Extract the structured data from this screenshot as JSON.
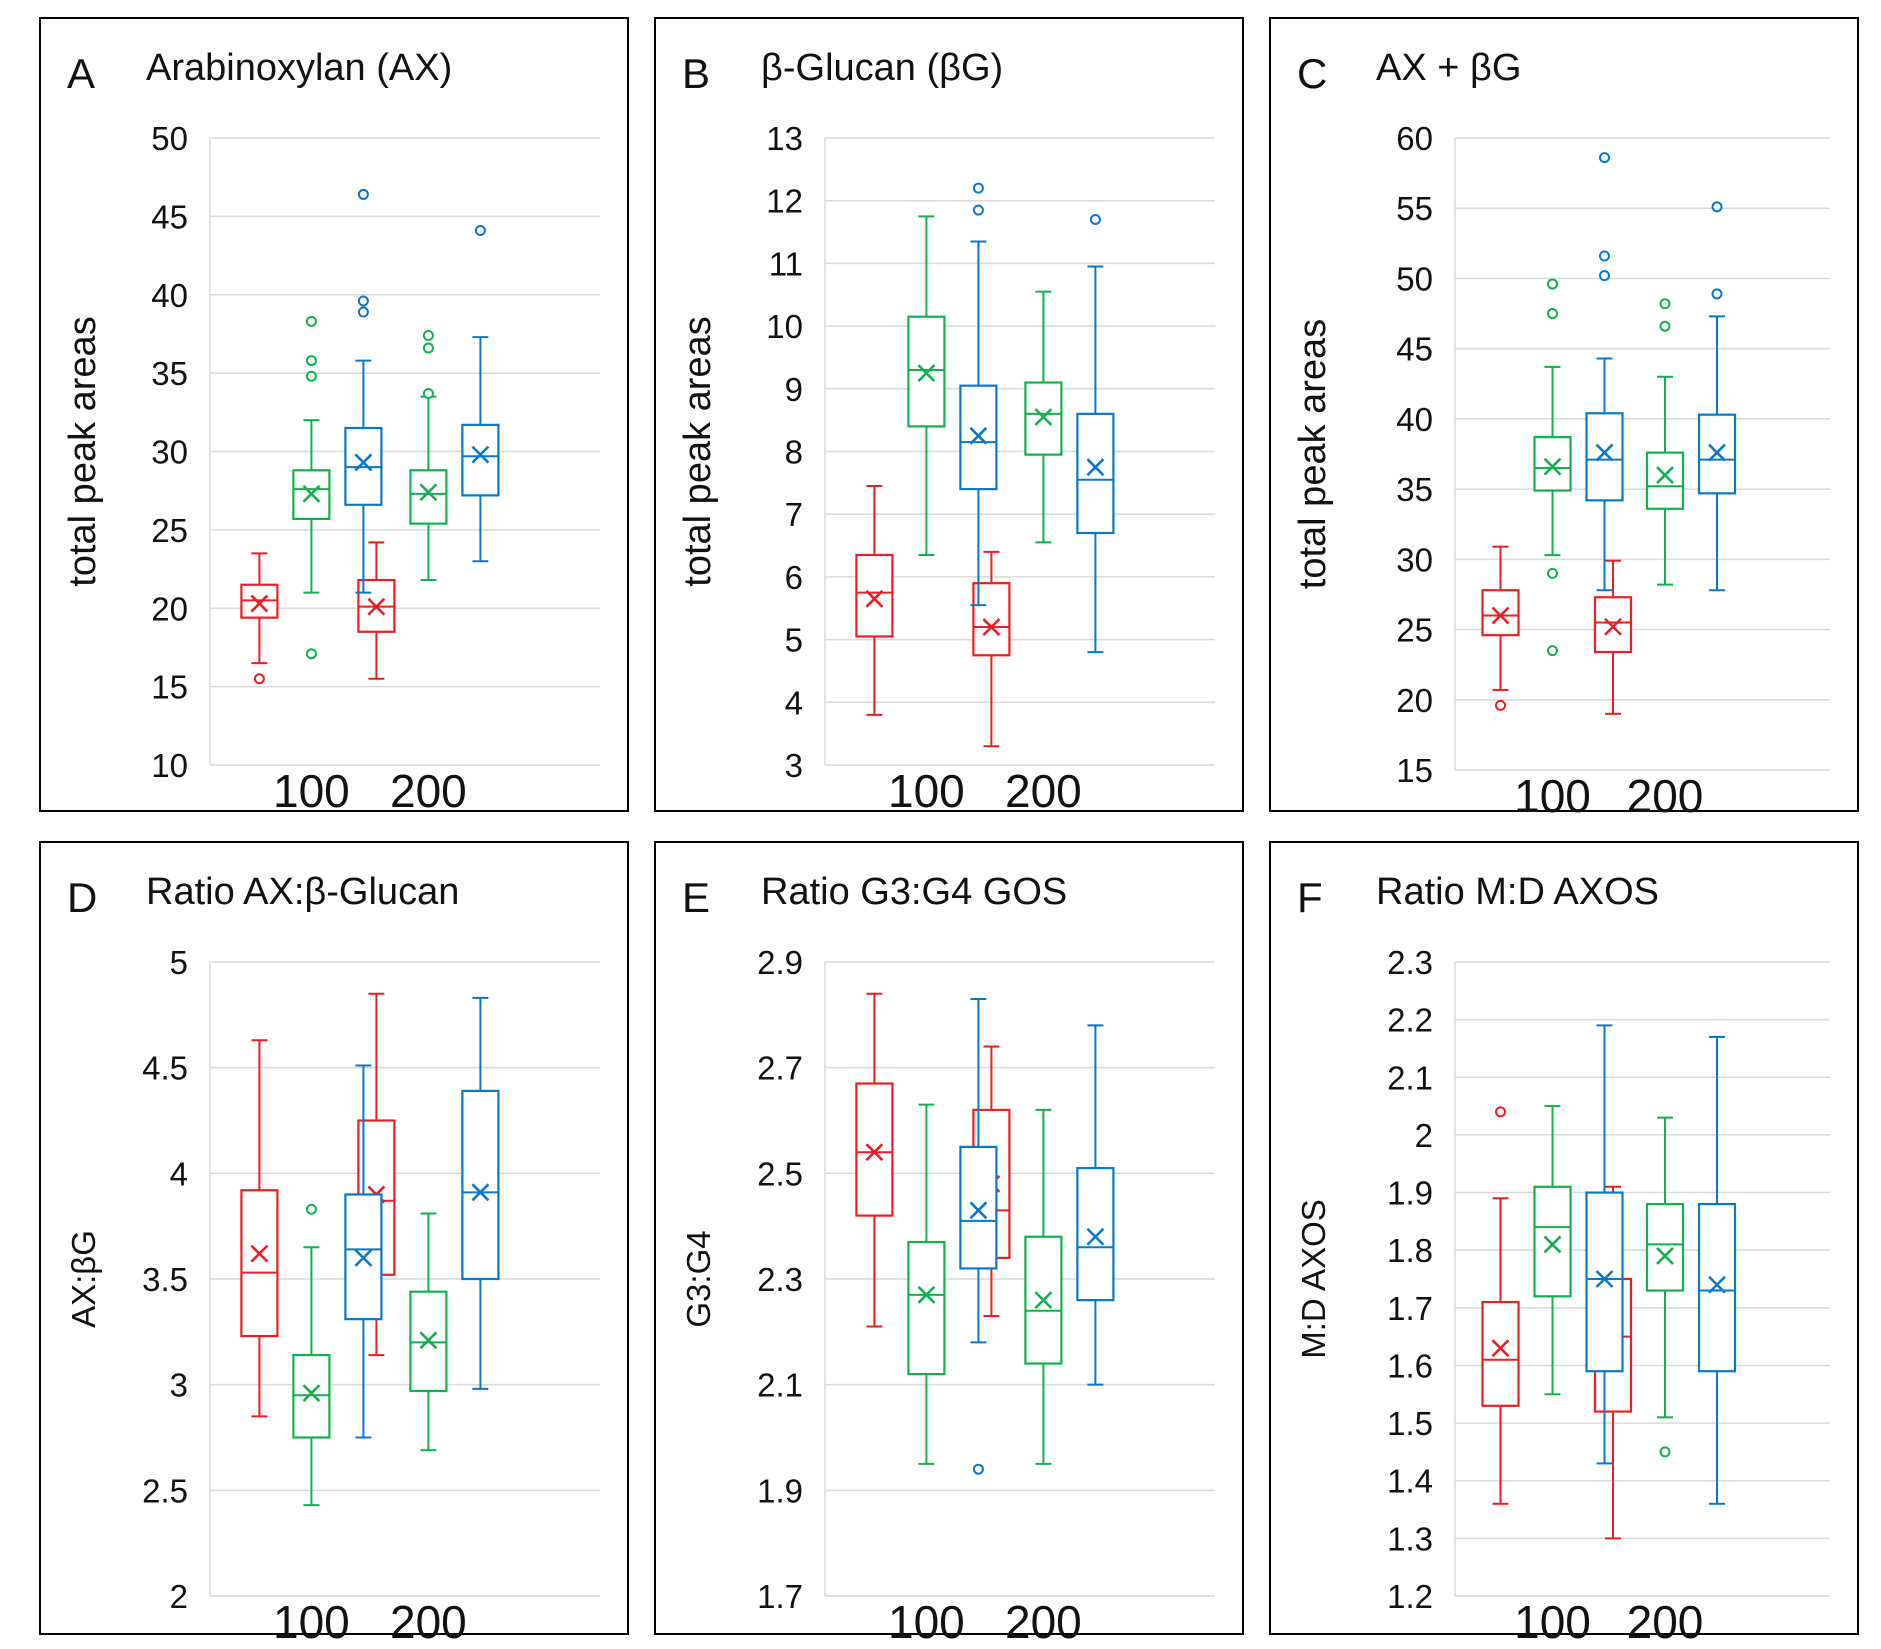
{
  "colors": {
    "red": "#ee1c24",
    "green": "#11b050",
    "blue": "#0a78c8",
    "grid": "#d9d9d9",
    "frame": "#000000"
  },
  "chart_data": [
    {
      "panel": "A",
      "title": "Arabinoxylan (AX)",
      "type": "box",
      "ylabel": "total peak areas",
      "ylim": [
        10,
        50
      ],
      "yticks": [
        10,
        15,
        20,
        25,
        30,
        35,
        40,
        45,
        50
      ],
      "categories": [
        "100",
        "200"
      ],
      "series": [
        {
          "color": "red",
          "boxes": [
            {
              "min": 16.5,
              "q1": 19.4,
              "median": 20.5,
              "q3": 21.5,
              "max": 23.5,
              "mean": 20.3,
              "outliers": [
                15.5
              ]
            },
            {
              "min": 15.5,
              "q1": 18.5,
              "median": 20.1,
              "q3": 21.8,
              "max": 24.2,
              "mean": 20.1,
              "outliers": []
            }
          ]
        },
        {
          "color": "green",
          "boxes": [
            {
              "min": 21.0,
              "q1": 25.7,
              "median": 27.6,
              "q3": 28.8,
              "max": 32.0,
              "mean": 27.3,
              "outliers": [
                17.1,
                34.8,
                35.8,
                38.3
              ]
            },
            {
              "min": 21.8,
              "q1": 25.4,
              "median": 27.3,
              "q3": 28.8,
              "max": 33.5,
              "mean": 27.4,
              "outliers": [
                33.7,
                36.6,
                37.4
              ]
            }
          ]
        },
        {
          "color": "blue",
          "boxes": [
            {
              "min": 21.0,
              "q1": 26.6,
              "median": 29.0,
              "q3": 31.5,
              "max": 35.8,
              "mean": 29.3,
              "outliers": [
                38.9,
                39.6,
                46.4
              ]
            },
            {
              "min": 23.0,
              "q1": 27.2,
              "median": 29.7,
              "q3": 31.7,
              "max": 37.3,
              "mean": 29.8,
              "outliers": [
                44.1
              ]
            }
          ]
        }
      ]
    },
    {
      "panel": "B",
      "title": "β-Glucan (βG)",
      "type": "box",
      "ylabel": "total peak areas",
      "ylim": [
        3,
        13
      ],
      "yticks": [
        3,
        4,
        5,
        6,
        7,
        8,
        9,
        10,
        11,
        12,
        13
      ],
      "categories": [
        "100",
        "200"
      ],
      "series": [
        {
          "color": "red",
          "boxes": [
            {
              "min": 3.8,
              "q1": 5.05,
              "median": 5.75,
              "q3": 6.35,
              "max": 7.45,
              "mean": 5.65,
              "outliers": []
            },
            {
              "min": 3.3,
              "q1": 4.75,
              "median": 5.2,
              "q3": 5.9,
              "max": 6.4,
              "mean": 5.2,
              "outliers": []
            }
          ]
        },
        {
          "color": "green",
          "boxes": [
            {
              "min": 6.35,
              "q1": 8.4,
              "median": 9.3,
              "q3": 10.15,
              "max": 11.75,
              "mean": 9.25,
              "outliers": []
            },
            {
              "min": 6.55,
              "q1": 7.95,
              "median": 8.6,
              "q3": 9.1,
              "max": 10.55,
              "mean": 8.55,
              "outliers": []
            }
          ]
        },
        {
          "color": "blue",
          "boxes": [
            {
              "min": 5.55,
              "q1": 7.4,
              "median": 8.15,
              "q3": 9.05,
              "max": 11.35,
              "mean": 8.25,
              "outliers": [
                11.85,
                12.2
              ]
            },
            {
              "min": 4.8,
              "q1": 6.7,
              "median": 7.55,
              "q3": 8.6,
              "max": 10.95,
              "mean": 7.75,
              "outliers": [
                11.7
              ]
            }
          ]
        }
      ]
    },
    {
      "panel": "C",
      "title": "AX + βG",
      "type": "box",
      "ylabel": "total peak areas",
      "ylim": [
        15,
        60
      ],
      "yticks": [
        15,
        20,
        25,
        30,
        35,
        40,
        45,
        50,
        55,
        60
      ],
      "categories": [
        "100",
        "200"
      ],
      "series": [
        {
          "color": "red",
          "boxes": [
            {
              "min": 20.7,
              "q1": 24.6,
              "median": 26.0,
              "q3": 27.8,
              "max": 30.9,
              "mean": 26.0,
              "outliers": [
                19.6
              ]
            },
            {
              "min": 19.0,
              "q1": 23.4,
              "median": 25.5,
              "q3": 27.3,
              "max": 29.9,
              "mean": 25.2,
              "outliers": []
            }
          ]
        },
        {
          "color": "green",
          "boxes": [
            {
              "min": 30.3,
              "q1": 34.9,
              "median": 36.5,
              "q3": 38.7,
              "max": 43.7,
              "mean": 36.6,
              "outliers": [
                23.5,
                29.0,
                47.5,
                49.6
              ]
            },
            {
              "min": 28.2,
              "q1": 33.6,
              "median": 35.2,
              "q3": 37.6,
              "max": 43.0,
              "mean": 36.0,
              "outliers": [
                46.6,
                48.2
              ]
            }
          ]
        },
        {
          "color": "blue",
          "boxes": [
            {
              "min": 27.8,
              "q1": 34.2,
              "median": 37.1,
              "q3": 40.4,
              "max": 44.3,
              "mean": 37.6,
              "outliers": [
                50.2,
                51.6,
                58.6
              ]
            },
            {
              "min": 27.8,
              "q1": 34.7,
              "median": 37.1,
              "q3": 40.3,
              "max": 47.3,
              "mean": 37.6,
              "outliers": [
                48.9,
                55.1
              ]
            }
          ]
        }
      ]
    },
    {
      "panel": "D",
      "title": "Ratio AX:β-Glucan",
      "type": "box",
      "ylabel": "AX:βG",
      "ylim": [
        2,
        5
      ],
      "yticks": [
        2,
        2.5,
        3,
        3.5,
        4,
        4.5,
        5
      ],
      "categories": [
        "100",
        "200"
      ],
      "series": [
        {
          "color": "red",
          "boxes": [
            {
              "min": 2.85,
              "q1": 3.23,
              "median": 3.53,
              "q3": 3.92,
              "max": 4.63,
              "mean": 3.62,
              "outliers": []
            },
            {
              "min": 3.14,
              "q1": 3.52,
              "median": 3.87,
              "q3": 4.25,
              "max": 4.85,
              "mean": 3.9,
              "outliers": []
            }
          ]
        },
        {
          "color": "green",
          "boxes": [
            {
              "min": 2.43,
              "q1": 2.75,
              "median": 2.95,
              "q3": 3.14,
              "max": 3.65,
              "mean": 2.96,
              "outliers": [
                3.83
              ]
            },
            {
              "min": 2.69,
              "q1": 2.97,
              "median": 3.2,
              "q3": 3.44,
              "max": 3.81,
              "mean": 3.21,
              "outliers": []
            }
          ]
        },
        {
          "color": "blue",
          "boxes": [
            {
              "min": 2.75,
              "q1": 3.31,
              "median": 3.64,
              "q3": 3.9,
              "max": 4.51,
              "mean": 3.6,
              "outliers": []
            },
            {
              "min": 2.98,
              "q1": 3.5,
              "median": 3.91,
              "q3": 4.39,
              "max": 4.83,
              "mean": 3.91,
              "outliers": []
            }
          ]
        }
      ]
    },
    {
      "panel": "E",
      "title": "Ratio G3:G4 GOS",
      "type": "box",
      "ylabel": "G3:G4",
      "ylim": [
        1.7,
        2.9
      ],
      "yticks": [
        1.7,
        1.9,
        2.1,
        2.3,
        2.5,
        2.7,
        2.9
      ],
      "categories": [
        "100",
        "200"
      ],
      "series": [
        {
          "color": "red",
          "boxes": [
            {
              "min": 2.21,
              "q1": 2.42,
              "median": 2.54,
              "q3": 2.67,
              "max": 2.84,
              "mean": 2.54,
              "outliers": []
            },
            {
              "min": 2.23,
              "q1": 2.34,
              "median": 2.43,
              "q3": 2.62,
              "max": 2.74,
              "mean": 2.48,
              "outliers": []
            }
          ]
        },
        {
          "color": "green",
          "boxes": [
            {
              "min": 1.95,
              "q1": 2.12,
              "median": 2.27,
              "q3": 2.37,
              "max": 2.63,
              "mean": 2.27,
              "outliers": []
            },
            {
              "min": 1.95,
              "q1": 2.14,
              "median": 2.24,
              "q3": 2.38,
              "max": 2.62,
              "mean": 2.26,
              "outliers": []
            }
          ]
        },
        {
          "color": "blue",
          "boxes": [
            {
              "min": 2.18,
              "q1": 2.32,
              "median": 2.41,
              "q3": 2.55,
              "max": 2.83,
              "mean": 2.43,
              "outliers": [
                1.94
              ]
            },
            {
              "min": 2.1,
              "q1": 2.26,
              "median": 2.36,
              "q3": 2.51,
              "max": 2.78,
              "mean": 2.38,
              "outliers": []
            }
          ]
        }
      ]
    },
    {
      "panel": "F",
      "title": "Ratio M:D  AXOS",
      "type": "box",
      "ylabel": "M:D AXOS",
      "ylim": [
        1.2,
        2.3
      ],
      "yticks": [
        1.2,
        1.3,
        1.4,
        1.5,
        1.6,
        1.7,
        1.8,
        1.9,
        2,
        2.1,
        2.2,
        2.3
      ],
      "categories": [
        "100",
        "200"
      ],
      "series": [
        {
          "color": "red",
          "boxes": [
            {
              "min": 1.36,
              "q1": 1.53,
              "median": 1.61,
              "q3": 1.71,
              "max": 1.89,
              "mean": 1.63,
              "outliers": [
                2.04
              ]
            },
            {
              "min": 1.3,
              "q1": 1.52,
              "median": 1.65,
              "q3": 1.75,
              "max": 1.91,
              "mean": 1.62,
              "outliers": []
            }
          ]
        },
        {
          "color": "green",
          "boxes": [
            {
              "min": 1.55,
              "q1": 1.72,
              "median": 1.84,
              "q3": 1.91,
              "max": 2.05,
              "mean": 1.81,
              "outliers": []
            },
            {
              "min": 1.51,
              "q1": 1.73,
              "median": 1.81,
              "q3": 1.88,
              "max": 2.03,
              "mean": 1.79,
              "outliers": [
                1.45
              ]
            }
          ]
        },
        {
          "color": "blue",
          "boxes": [
            {
              "min": 1.43,
              "q1": 1.59,
              "median": 1.75,
              "q3": 1.9,
              "max": 2.19,
              "mean": 1.75,
              "outliers": []
            },
            {
              "min": 1.36,
              "q1": 1.59,
              "median": 1.73,
              "q3": 1.88,
              "max": 2.17,
              "mean": 1.74,
              "outliers": []
            }
          ]
        }
      ]
    }
  ]
}
